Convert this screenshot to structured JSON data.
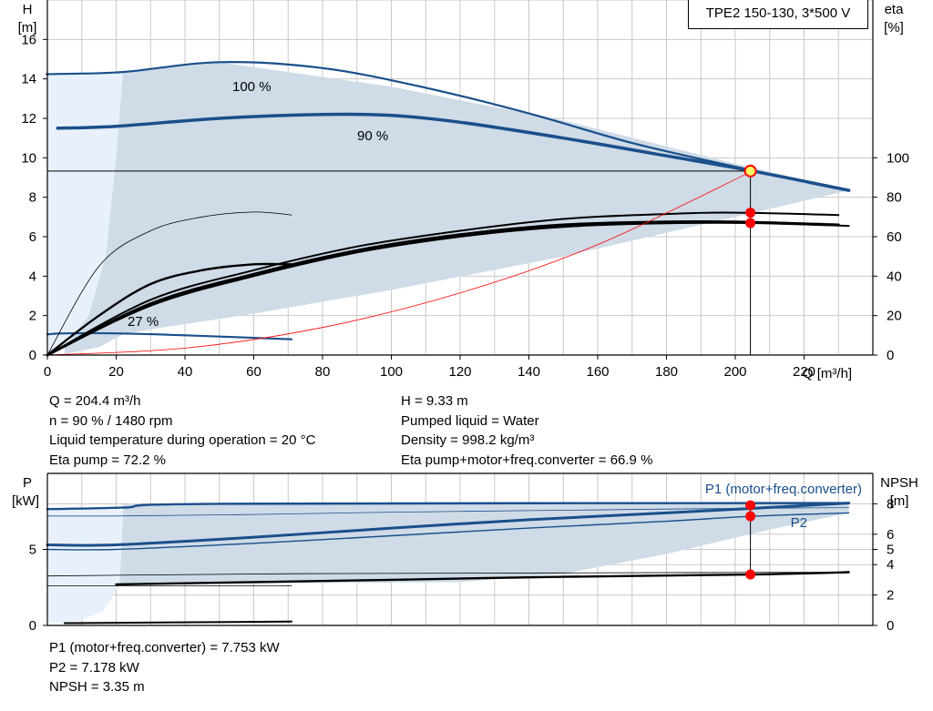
{
  "title": "TPE2 150-130, 3*500 V",
  "colors": {
    "curve": "#1a4f8b",
    "envelope": "#cfdbe7",
    "envelope_light": "#e8f1fb",
    "grid": "#c8c8c8",
    "duty_point": "#ff0000",
    "duty_marker_fill": "#ffff66",
    "system_curve": "#ff0000"
  },
  "chart_data": [
    {
      "name": "head-efficiency",
      "type": "line",
      "xlabel": "Q [m³/h]",
      "ylabel_left": [
        "H",
        "[m]"
      ],
      "ylabel_right": [
        "eta",
        "[%]"
      ],
      "xlim": [
        0,
        240
      ],
      "ylim": [
        0,
        18
      ],
      "ylim_right": [
        0,
        180
      ],
      "x_ticks": [
        "0",
        "20",
        "40",
        "60",
        "80",
        "100",
        "120",
        "140",
        "160",
        "180",
        "200",
        "220"
      ],
      "y_ticks": [
        "0",
        "2",
        "4",
        "6",
        "8",
        "10",
        "12",
        "14",
        "16"
      ],
      "y_right_ticks": [
        "0",
        "20",
        "40",
        "60",
        "80",
        "100"
      ],
      "grid": true,
      "curve_labels": [
        "100 %",
        "90 %",
        "27 %"
      ],
      "envelope": [
        [
          2,
          14.25
        ],
        [
          22,
          14.35
        ],
        [
          50,
          14.85
        ],
        [
          100,
          13.6
        ],
        [
          150,
          11.9
        ],
        [
          200,
          9.7
        ],
        [
          233,
          8.35
        ],
        [
          200,
          7.0
        ],
        [
          150,
          5.0
        ],
        [
          100,
          3.3
        ],
        [
          60,
          2.1
        ],
        [
          30,
          1.3
        ],
        [
          22,
          1.05
        ],
        [
          15,
          0.4
        ],
        [
          5,
          0.05
        ]
      ],
      "envelope_light": [
        [
          0,
          14.25
        ],
        [
          22,
          14.35
        ],
        [
          20,
          10.0
        ],
        [
          17,
          5.0
        ],
        [
          12,
          2.0
        ],
        [
          5,
          0.4
        ],
        [
          0,
          0
        ]
      ],
      "series": [
        {
          "name": "100 %",
          "x": [
            0,
            2,
            22,
            50,
            80,
            110,
            140,
            170,
            200,
            233
          ],
          "y": [
            14.25,
            14.25,
            14.35,
            14.85,
            14.55,
            13.55,
            12.25,
            10.75,
            9.55,
            8.35
          ],
          "width": 2.2
        },
        {
          "name": "90 %",
          "x": [
            3,
            20,
            50,
            80,
            100,
            120,
            150,
            180,
            205,
            233
          ],
          "y": [
            11.5,
            11.6,
            12.0,
            12.2,
            12.15,
            11.8,
            11.0,
            10.1,
            9.33,
            8.35
          ],
          "width": 3.5
        },
        {
          "name": "27 %",
          "x": [
            0,
            5,
            20,
            40,
            71
          ],
          "y": [
            1.05,
            1.1,
            1.1,
            1.0,
            0.8
          ],
          "width": 2.2
        },
        {
          "name": "eta-1",
          "x": [
            0,
            15,
            30,
            45,
            60,
            71
          ],
          "y": [
            0,
            45,
            63,
            70,
            72.5,
            71
          ],
          "width": 0.8,
          "color": "#000000",
          "axis": "right"
        },
        {
          "name": "eta-2",
          "x": [
            0,
            15,
            30,
            45,
            60,
            71
          ],
          "y": [
            0,
            20,
            36,
            43,
            46,
            46
          ],
          "width": 2.4,
          "color": "#000000",
          "axis": "right"
        },
        {
          "name": "eta-3",
          "x": [
            0,
            30,
            60,
            90,
            120,
            150,
            180,
            200,
            230
          ],
          "y": [
            0,
            28,
            43,
            55,
            63,
            69,
            71.5,
            72.2,
            71
          ],
          "width": 2.0,
          "color": "#000000",
          "axis": "right"
        },
        {
          "name": "eta-4",
          "x": [
            0,
            30,
            60,
            90,
            120,
            150,
            180,
            200,
            230
          ],
          "y": [
            0,
            26,
            41,
            53,
            61,
            66,
            67.5,
            67.5,
            66
          ],
          "width": 3.0,
          "color": "#000000",
          "axis": "right"
        },
        {
          "name": "eta-5",
          "x": [
            0,
            30,
            60,
            90,
            120,
            150,
            180,
            205,
            233
          ],
          "y": [
            0,
            25,
            40,
            52,
            60,
            65,
            66.8,
            66.9,
            65.5
          ],
          "width": 2.0,
          "color": "#000000",
          "axis": "right"
        },
        {
          "name": "system",
          "x": [
            0,
            40,
            80,
            120,
            160,
            205
          ],
          "y": [
            0,
            0.35,
            1.4,
            3.15,
            5.6,
            9.33
          ],
          "width": 0.8,
          "color": "#ff0000"
        }
      ],
      "duty_point": {
        "x": 204.4,
        "y": 9.33
      },
      "eta_points": [
        72.2,
        66.9
      ]
    },
    {
      "name": "power-npsh",
      "type": "line",
      "ylabel_left": [
        "P",
        "[kW]"
      ],
      "ylabel_right": [
        "NPSH",
        "[m]"
      ],
      "xlim": [
        0,
        240
      ],
      "ylim": [
        0,
        10
      ],
      "y_ticks": [
        "0",
        "5"
      ],
      "y_right_ticks": [
        "0",
        "2",
        "4",
        "5",
        "6",
        "8"
      ],
      "grid": true,
      "series_labels": [
        "P1 (motor+freq.converter)",
        "P2"
      ],
      "envelope": [
        [
          22,
          7.95
        ],
        [
          233,
          8.05
        ],
        [
          233,
          7.4
        ],
        [
          210,
          6.3
        ],
        [
          180,
          4.7
        ],
        [
          150,
          3.4
        ],
        [
          120,
          2.85
        ],
        [
          90,
          2.8
        ],
        [
          50,
          2.75
        ],
        [
          21,
          2.65
        ],
        [
          16,
          0.9
        ],
        [
          8,
          0.25
        ],
        [
          0,
          0.15
        ],
        [
          0,
          2.6
        ],
        [
          21,
          2.7
        ],
        [
          22,
          7.6
        ]
      ],
      "envelope_light": [
        [
          0,
          7.6
        ],
        [
          22,
          7.6
        ],
        [
          21,
          2.7
        ],
        [
          16,
          0.9
        ],
        [
          8,
          0.25
        ],
        [
          0,
          0.15
        ]
      ],
      "series": [
        {
          "name": "P1",
          "x": [
            0,
            22,
            50,
            233
          ],
          "y": [
            7.65,
            7.75,
            8.0,
            8.05
          ],
          "width": 2.4
        },
        {
          "name": "P1-low",
          "x": [
            0,
            20,
            60,
            100,
            140,
            180,
            233
          ],
          "y": [
            5.3,
            5.3,
            5.8,
            6.4,
            6.95,
            7.4,
            8.05
          ],
          "width": 3.0
        },
        {
          "name": "P2",
          "x": [
            0,
            20,
            60,
            100,
            140,
            180,
            205,
            233
          ],
          "y": [
            7.2,
            7.2,
            7.3,
            7.45,
            7.55,
            7.65,
            7.7,
            7.75
          ],
          "width": 0.8
        },
        {
          "name": "P2-low",
          "x": [
            0,
            20,
            60,
            100,
            140,
            180,
            205,
            233
          ],
          "y": [
            5.0,
            5.0,
            5.4,
            5.9,
            6.4,
            6.85,
            7.18,
            7.4
          ],
          "width": 1.4
        },
        {
          "name": "NPSH-a",
          "x": [
            0,
            20,
            71,
            233
          ],
          "y": [
            3.25,
            3.3,
            3.4,
            3.5
          ],
          "width": 0.8,
          "color": "#000000"
        },
        {
          "name": "NPSH-b",
          "x": [
            20,
            100,
            150,
            205,
            233
          ],
          "y": [
            2.7,
            3.0,
            3.2,
            3.35,
            3.5
          ],
          "width": 2.4,
          "color": "#000000"
        },
        {
          "name": "NPSH-c",
          "x": [
            0,
            22,
            71
          ],
          "y": [
            2.6,
            2.6,
            2.6
          ],
          "width": 0.8,
          "color": "#000000"
        },
        {
          "name": "NPSH-d",
          "x": [
            5,
            71
          ],
          "y": [
            0.15,
            0.25
          ],
          "width": 2.0,
          "color": "#000000"
        }
      ],
      "duty_points": [
        7.753,
        7.178,
        3.35
      ]
    }
  ],
  "info_top_left": [
    "Q = 204.4 m³/h",
    "n = 90 % / 1480 rpm",
    "Liquid temperature during operation = 20 °C",
    "Eta pump = 72.2 %"
  ],
  "info_top_right": [
    "H = 9.33 m",
    "Pumped liquid = Water",
    "Density = 998.2 kg/m³",
    "Eta pump+motor+freq.converter = 66.9 %"
  ],
  "info_bottom": [
    "P1 (motor+freq.converter) = 7.753 kW",
    "P2 = 7.178 kW",
    "NPSH = 3.35 m"
  ]
}
